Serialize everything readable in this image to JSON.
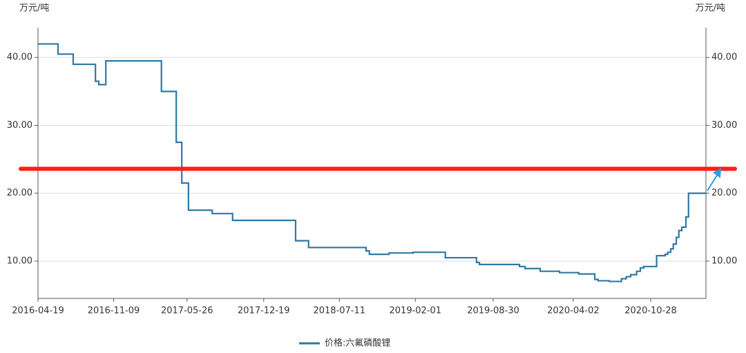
{
  "chart_data": {
    "type": "line",
    "step": "after",
    "y_label": "万元/吨",
    "y2_label": "万元/吨",
    "xlim": [
      "2016-04-19",
      "2021-03-26"
    ],
    "xticks": [
      "2016-04-19",
      "2016-11-09",
      "2017-05-26",
      "2017-12-19",
      "2018-07-11",
      "2019-02-01",
      "2019-08-30",
      "2020-04-02",
      "2020-10-28"
    ],
    "ylim": [
      4.5,
      44.4
    ],
    "yticks": [
      {
        "value": 10,
        "label": "10.00"
      },
      {
        "value": 20,
        "label": "20.00"
      },
      {
        "value": 30,
        "label": "30.00"
      },
      {
        "value": 40,
        "label": "40.00"
      }
    ],
    "y2lim": [
      4.5,
      44.4
    ],
    "y2ticks": [
      {
        "value": 10,
        "label": "10.00"
      },
      {
        "value": 20,
        "label": "20.00"
      },
      {
        "value": 30,
        "label": "30.00"
      },
      {
        "value": 40,
        "label": "40.00"
      }
    ],
    "grid": true,
    "legend": "bottom",
    "reference_line": {
      "value": 23.6,
      "color": "#ff2015"
    },
    "x": [
      "2016-04-19",
      "2016-06-12",
      "2016-07-23",
      "2016-09-21",
      "2016-09-30",
      "2016-10-19",
      "2017-03-18",
      "2017-04-27",
      "2017-05-12",
      "2017-05-30",
      "2017-08-02",
      "2017-09-26",
      "2018-03-15",
      "2018-04-19",
      "2018-09-21",
      "2018-09-30",
      "2018-11-22",
      "2019-01-26",
      "2019-04-23",
      "2019-07-16",
      "2019-07-24",
      "2019-11-09",
      "2019-11-24",
      "2020-01-04",
      "2020-02-25",
      "2020-04-17",
      "2020-05-30",
      "2020-06-08",
      "2020-07-08",
      "2020-08-10",
      "2020-08-23",
      "2020-09-04",
      "2020-09-20",
      "2020-09-30",
      "2020-10-09",
      "2020-11-13",
      "2020-12-06",
      "2020-12-13",
      "2020-12-21",
      "2020-12-28",
      "2021-01-05",
      "2021-01-12",
      "2021-01-20",
      "2021-01-31",
      "2021-02-07",
      "2021-03-26"
    ],
    "series": [
      {
        "name": "价格:六氟磷酸锂",
        "color": "#2e78a4",
        "values": [
          42.0,
          40.5,
          39.0,
          36.5,
          36.0,
          39.5,
          35.0,
          27.5,
          21.5,
          17.5,
          17.0,
          16.0,
          13.0,
          12.0,
          11.5,
          11.0,
          11.2,
          11.3,
          10.5,
          9.8,
          9.5,
          9.2,
          8.9,
          8.5,
          8.3,
          8.1,
          7.3,
          7.1,
          7.0,
          7.4,
          7.7,
          8.0,
          8.5,
          9.0,
          9.2,
          10.8,
          11.0,
          11.3,
          11.8,
          12.5,
          13.5,
          14.5,
          15.0,
          16.5,
          20.0,
          20.0
        ]
      }
    ]
  }
}
